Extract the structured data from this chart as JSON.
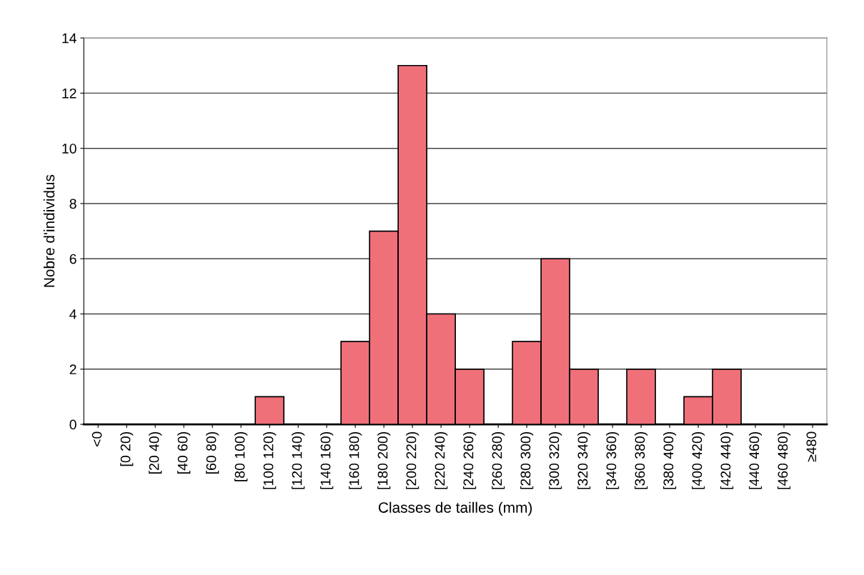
{
  "chart_data": {
    "type": "bar",
    "xlabel": "Classes de tailles (mm)",
    "ylabel": "Nobre d'individus",
    "categories": [
      "<0",
      "[0 20)",
      "[20 40)",
      "[40 60)",
      "[60 80)",
      "[80 100)",
      "[100 120)",
      "[120 140)",
      "[140 160)",
      "[160 180)",
      "[180 200)",
      "[200 220)",
      "[220 240)",
      "[240 260)",
      "[260 280)",
      "[280 300)",
      "[300 320)",
      "[320 340)",
      "[340 360)",
      "[360 380)",
      "[380 400)",
      "[400 420)",
      "[420 440)",
      "[440 460)",
      "[460 480)",
      "≥480"
    ],
    "values": [
      0,
      0,
      0,
      0,
      0,
      0,
      1,
      0,
      0,
      3,
      7,
      13,
      4,
      2,
      0,
      3,
      6,
      2,
      0,
      2,
      0,
      1,
      2,
      0,
      0,
      0
    ],
    "color": "#f0707a",
    "ylim": [
      0,
      14
    ],
    "yticks": [
      0,
      2,
      4,
      6,
      8,
      10,
      12,
      14
    ],
    "grid": "y"
  }
}
